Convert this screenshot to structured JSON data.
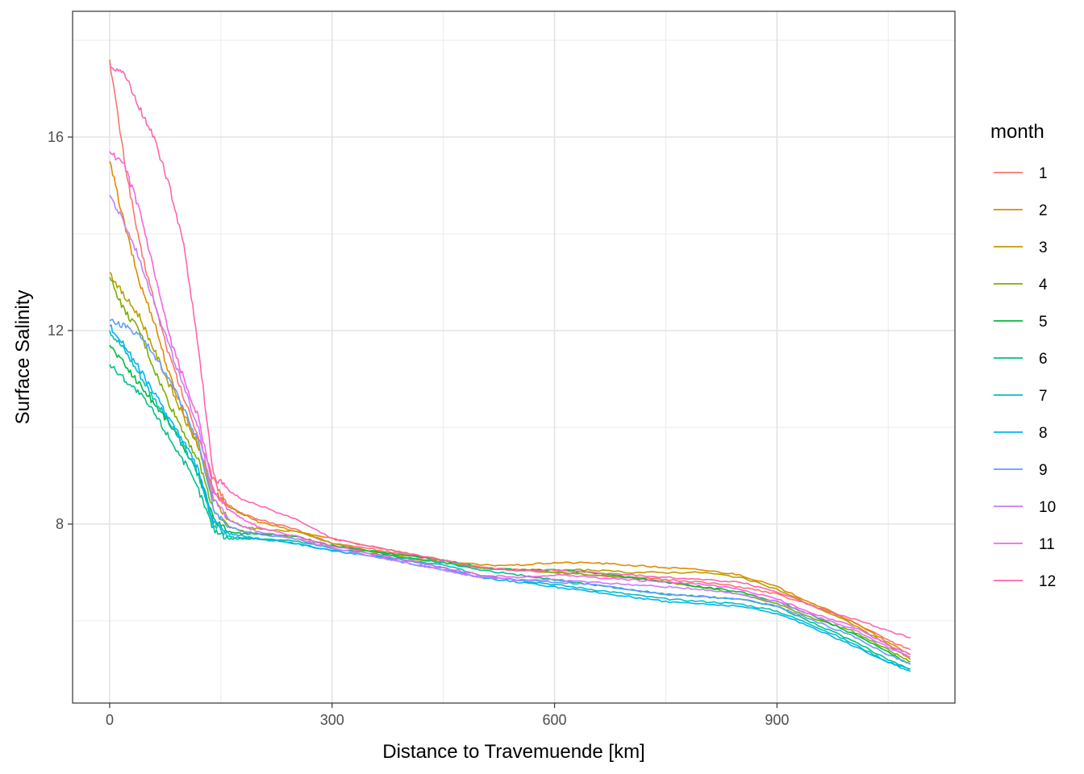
{
  "chart_data": {
    "type": "line",
    "title": "",
    "xlabel": "Distance to Travemuende [km]",
    "ylabel": "Surface Salinity",
    "xlim": [
      -50,
      1140
    ],
    "ylim": [
      4.3,
      18.6
    ],
    "x_ticks": [
      0,
      300,
      600,
      900
    ],
    "x_tick_labels": [
      "0",
      "300",
      "600",
      "900"
    ],
    "x_minor": [
      150,
      450,
      750,
      1050
    ],
    "y_ticks": [
      8,
      12,
      16
    ],
    "y_tick_labels": [
      "8",
      "12",
      "16"
    ],
    "y_minor": [
      6,
      10,
      14,
      18
    ],
    "grid": true,
    "legend": {
      "title": "month",
      "position": "right"
    },
    "x": [
      0,
      20,
      40,
      60,
      80,
      100,
      120,
      140,
      160,
      180,
      200,
      250,
      300,
      350,
      400,
      450,
      500,
      550,
      600,
      650,
      700,
      750,
      800,
      850,
      900,
      950,
      1000,
      1050,
      1080
    ],
    "series": [
      {
        "name": "1",
        "color": "#F8766D",
        "values": [
          17.6,
          15.5,
          13.8,
          12.6,
          11.5,
          10.6,
          9.8,
          8.9,
          8.4,
          8.2,
          8.1,
          7.9,
          7.6,
          7.5,
          7.35,
          7.25,
          7.1,
          7.05,
          7.0,
          6.95,
          6.9,
          6.85,
          6.8,
          6.7,
          6.55,
          6.3,
          6.0,
          5.6,
          5.4
        ]
      },
      {
        "name": "2",
        "color": "#DE8C00",
        "values": [
          15.5,
          14.2,
          13.0,
          12.2,
          11.1,
          10.3,
          9.6,
          8.7,
          8.35,
          8.2,
          8.05,
          7.85,
          7.7,
          7.55,
          7.4,
          7.25,
          7.15,
          7.15,
          7.2,
          7.2,
          7.15,
          7.1,
          7.05,
          6.95,
          6.7,
          6.35,
          6.0,
          5.55,
          5.3
        ]
      },
      {
        "name": "3",
        "color": "#B79F00",
        "values": [
          13.2,
          12.7,
          12.3,
          11.6,
          10.9,
          10.2,
          9.6,
          8.5,
          8.1,
          7.95,
          7.9,
          7.85,
          7.6,
          7.45,
          7.3,
          7.2,
          7.1,
          7.05,
          7.05,
          7.05,
          7.0,
          7.0,
          7.0,
          6.9,
          6.65,
          6.3,
          5.95,
          5.5,
          5.2
        ]
      },
      {
        "name": "4",
        "color": "#7CAE00",
        "values": [
          13.1,
          12.4,
          12.0,
          11.2,
          10.5,
          9.9,
          9.3,
          8.3,
          7.95,
          7.85,
          7.8,
          7.75,
          7.55,
          7.45,
          7.3,
          7.2,
          7.1,
          7.05,
          7.0,
          6.95,
          6.9,
          6.8,
          6.7,
          6.55,
          6.35,
          6.05,
          5.8,
          5.4,
          5.15
        ]
      },
      {
        "name": "5",
        "color": "#00BA38",
        "values": [
          11.7,
          11.3,
          10.9,
          10.5,
          10.1,
          9.6,
          9.0,
          8.1,
          7.85,
          7.8,
          7.8,
          7.75,
          7.55,
          7.45,
          7.35,
          7.25,
          7.1,
          7.05,
          7.05,
          7.0,
          6.9,
          6.8,
          6.7,
          6.6,
          6.4,
          6.1,
          5.75,
          5.35,
          5.1
        ]
      },
      {
        "name": "6",
        "color": "#00C08B",
        "values": [
          11.3,
          11.0,
          10.7,
          10.3,
          9.8,
          9.3,
          8.7,
          7.9,
          7.7,
          7.7,
          7.7,
          7.65,
          7.5,
          7.4,
          7.3,
          7.2,
          7.05,
          6.95,
          6.85,
          6.75,
          6.65,
          6.55,
          6.5,
          6.45,
          6.3,
          5.95,
          5.6,
          5.2,
          5.0
        ]
      },
      {
        "name": "7",
        "color": "#00BFC4",
        "values": [
          12.0,
          11.6,
          11.1,
          10.6,
          10.1,
          9.6,
          9.0,
          8.0,
          7.75,
          7.7,
          7.7,
          7.6,
          7.45,
          7.35,
          7.25,
          7.15,
          6.95,
          6.85,
          6.75,
          6.65,
          6.55,
          6.45,
          6.4,
          6.35,
          6.2,
          5.9,
          5.55,
          5.15,
          4.95
        ]
      },
      {
        "name": "8",
        "color": "#00B4F0",
        "values": [
          12.1,
          11.7,
          11.2,
          10.7,
          10.2,
          9.7,
          9.1,
          8.05,
          7.8,
          7.75,
          7.7,
          7.6,
          7.45,
          7.35,
          7.25,
          7.1,
          6.9,
          6.8,
          6.7,
          6.6,
          6.5,
          6.4,
          6.35,
          6.3,
          6.15,
          5.85,
          5.5,
          5.15,
          5.0
        ]
      },
      {
        "name": "9",
        "color": "#619CFF",
        "values": [
          12.2,
          12.1,
          11.9,
          11.5,
          11.0,
          10.4,
          9.7,
          8.3,
          7.95,
          7.85,
          7.8,
          7.7,
          7.5,
          7.35,
          7.2,
          7.05,
          6.9,
          6.85,
          6.8,
          6.75,
          6.65,
          6.55,
          6.5,
          6.45,
          6.3,
          6.0,
          5.7,
          5.3,
          5.1
        ]
      },
      {
        "name": "10",
        "color": "#C77CFF",
        "values": [
          14.8,
          14.2,
          13.5,
          12.6,
          11.7,
          10.8,
          10.0,
          8.5,
          8.1,
          7.95,
          7.85,
          7.7,
          7.5,
          7.35,
          7.2,
          7.05,
          6.9,
          6.85,
          6.85,
          6.8,
          6.75,
          6.7,
          6.65,
          6.55,
          6.4,
          6.1,
          5.85,
          5.45,
          5.25
        ]
      },
      {
        "name": "11",
        "color": "#F564E3",
        "values": [
          15.7,
          15.4,
          14.5,
          13.2,
          11.9,
          11.0,
          10.2,
          8.7,
          8.3,
          8.1,
          7.95,
          7.75,
          7.55,
          7.4,
          7.25,
          7.1,
          6.95,
          6.9,
          6.95,
          6.9,
          6.85,
          6.8,
          6.75,
          6.65,
          6.45,
          6.15,
          5.9,
          5.5,
          5.3
        ]
      },
      {
        "name": "12",
        "color": "#FF64B0",
        "values": [
          17.5,
          17.3,
          16.6,
          16.0,
          15.0,
          13.8,
          11.6,
          9.0,
          8.7,
          8.5,
          8.4,
          8.1,
          7.7,
          7.55,
          7.4,
          7.25,
          7.1,
          7.05,
          7.05,
          7.0,
          6.95,
          6.9,
          6.85,
          6.8,
          6.6,
          6.3,
          6.05,
          5.8,
          5.65
        ]
      }
    ]
  }
}
